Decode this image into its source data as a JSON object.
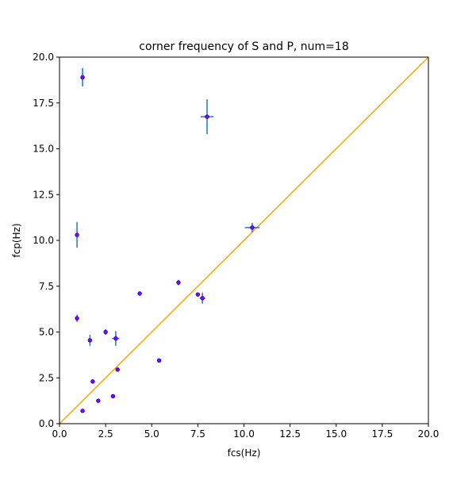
{
  "chart_data": {
    "type": "scatter",
    "title": "corner frequency of S and P, num=18",
    "xlabel": "fcs(Hz)",
    "ylabel": "fcp(Hz)",
    "xlim": [
      0,
      20
    ],
    "ylim": [
      0,
      20
    ],
    "xticks": [
      "0.0",
      "2.5",
      "5.0",
      "7.5",
      "10.0",
      "12.5",
      "15.0",
      "17.5",
      "20.0"
    ],
    "yticks": [
      "0.0",
      "2.5",
      "5.0",
      "7.5",
      "10.0",
      "12.5",
      "15.0",
      "17.5",
      "20.0"
    ],
    "grid": false,
    "reference_line": {
      "x": [
        0,
        20
      ],
      "y": [
        0,
        20
      ],
      "color": "#ffa500"
    },
    "point_color": "#8b00ff",
    "point_edge_color": "#0000cd",
    "errorbar_color": "#1f77b4",
    "points": [
      {
        "x": 1.25,
        "y": 18.9,
        "xerr": 0.0,
        "yerr": 0.5
      },
      {
        "x": 8.0,
        "y": 16.75,
        "xerr": 0.35,
        "yerr": 0.95
      },
      {
        "x": 0.95,
        "y": 10.3,
        "xerr": 0.0,
        "yerr": 0.7
      },
      {
        "x": 10.45,
        "y": 10.7,
        "xerr": 0.4,
        "yerr": 0.25
      },
      {
        "x": 6.45,
        "y": 7.7,
        "xerr": 0.0,
        "yerr": 0.15
      },
      {
        "x": 4.35,
        "y": 7.1,
        "xerr": 0.0,
        "yerr": 0.0
      },
      {
        "x": 7.5,
        "y": 7.05,
        "xerr": 0.0,
        "yerr": 0.0
      },
      {
        "x": 7.75,
        "y": 6.85,
        "xerr": 0.15,
        "yerr": 0.3
      },
      {
        "x": 0.95,
        "y": 5.75,
        "xerr": 0.0,
        "yerr": 0.2
      },
      {
        "x": 2.5,
        "y": 5.0,
        "xerr": 0.0,
        "yerr": 0.15
      },
      {
        "x": 1.65,
        "y": 4.55,
        "xerr": 0.0,
        "yerr": 0.3
      },
      {
        "x": 3.05,
        "y": 4.65,
        "xerr": 0.2,
        "yerr": 0.4
      },
      {
        "x": 5.4,
        "y": 3.45,
        "xerr": 0.0,
        "yerr": 0.0
      },
      {
        "x": 3.15,
        "y": 2.95,
        "xerr": 0.0,
        "yerr": 0.0
      },
      {
        "x": 1.8,
        "y": 2.3,
        "xerr": 0.0,
        "yerr": 0.0
      },
      {
        "x": 2.9,
        "y": 1.5,
        "xerr": 0.0,
        "yerr": 0.0
      },
      {
        "x": 2.1,
        "y": 1.25,
        "xerr": 0.0,
        "yerr": 0.0
      },
      {
        "x": 1.25,
        "y": 0.7,
        "xerr": 0.0,
        "yerr": 0.0
      }
    ]
  }
}
